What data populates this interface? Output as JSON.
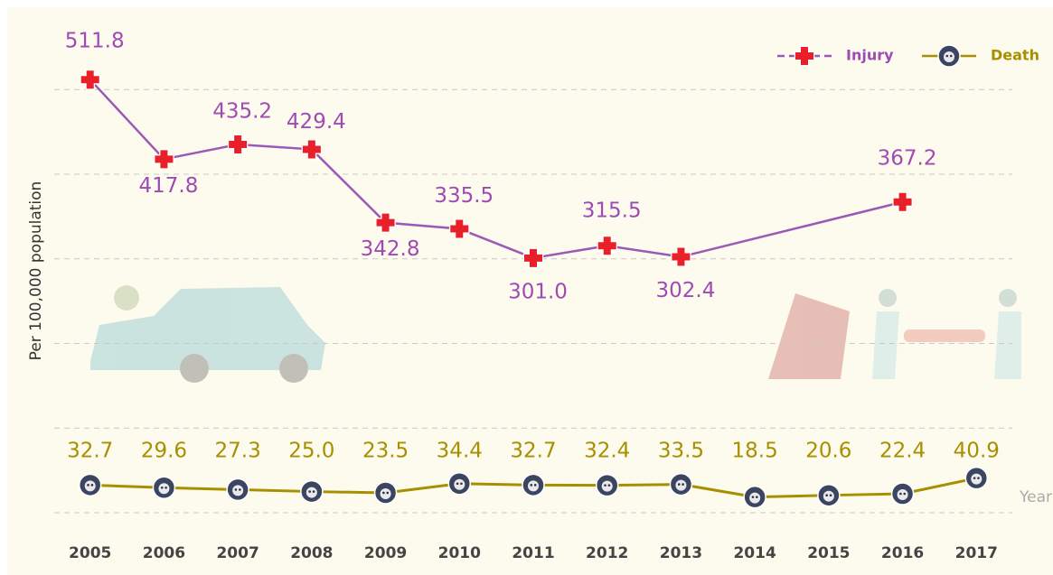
{
  "chart_data": {
    "type": "line",
    "y_label": "Per 100,000 population",
    "x_label": "Year",
    "x": [
      2005,
      2006,
      2007,
      2008,
      2009,
      2010,
      2011,
      2012,
      2013,
      2014,
      2015,
      2016,
      2017
    ],
    "xlim": [
      2004,
      2018
    ],
    "ylim": [
      0,
      560
    ],
    "ygrid": [
      0,
      100,
      200,
      300,
      400,
      500
    ],
    "grid": true,
    "legend": "top-right",
    "series": [
      {
        "name": "Injury",
        "color": "#9b59b6",
        "label_color": "#a04ab4",
        "x": [
          2005,
          2006,
          2007,
          2008,
          2009,
          2010,
          2011,
          2012,
          2013,
          2016
        ],
        "values": [
          511.8,
          417.8,
          435.2,
          429.4,
          342.8,
          335.5,
          301.0,
          315.5,
          302.4,
          367.2
        ],
        "value_labels": [
          "511.8",
          "417.8",
          "435.2",
          "429.4",
          "342.8",
          "335.5",
          "301.0",
          "315.5",
          "302.4",
          "367.2"
        ]
      },
      {
        "name": "Death",
        "color": "#a88f00",
        "label_color": "#a88f00",
        "values": [
          32.7,
          29.6,
          27.3,
          25.0,
          23.5,
          34.4,
          32.7,
          32.4,
          33.5,
          18.5,
          20.6,
          22.4,
          40.9
        ],
        "value_labels": [
          "32.7",
          "29.6",
          "27.3",
          "25.0",
          "23.5",
          "34.4",
          "32.7",
          "32.4",
          "33.5",
          "18.5",
          "20.6",
          "22.4",
          "40.9"
        ]
      }
    ]
  }
}
